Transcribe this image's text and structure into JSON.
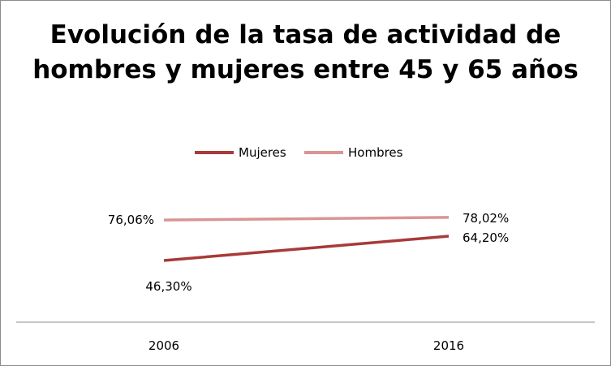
{
  "chart_data": {
    "type": "line",
    "title": "Evolución de la tasa de actividad de hombres y mujeres entre 45 y 65 años",
    "categories": [
      "2006",
      "2016"
    ],
    "series": [
      {
        "name": "Mujeres",
        "values": [
          46.3,
          64.2
        ],
        "labels": [
          "46,30%",
          "64,20%"
        ],
        "color": "#a83a3a"
      },
      {
        "name": "Hombres",
        "values": [
          76.06,
          78.02
        ],
        "labels": [
          "76,06%",
          "78,02%"
        ],
        "color": "#d99594"
      }
    ],
    "xlabel": "",
    "ylabel": "",
    "legend": "top",
    "grid": false
  }
}
